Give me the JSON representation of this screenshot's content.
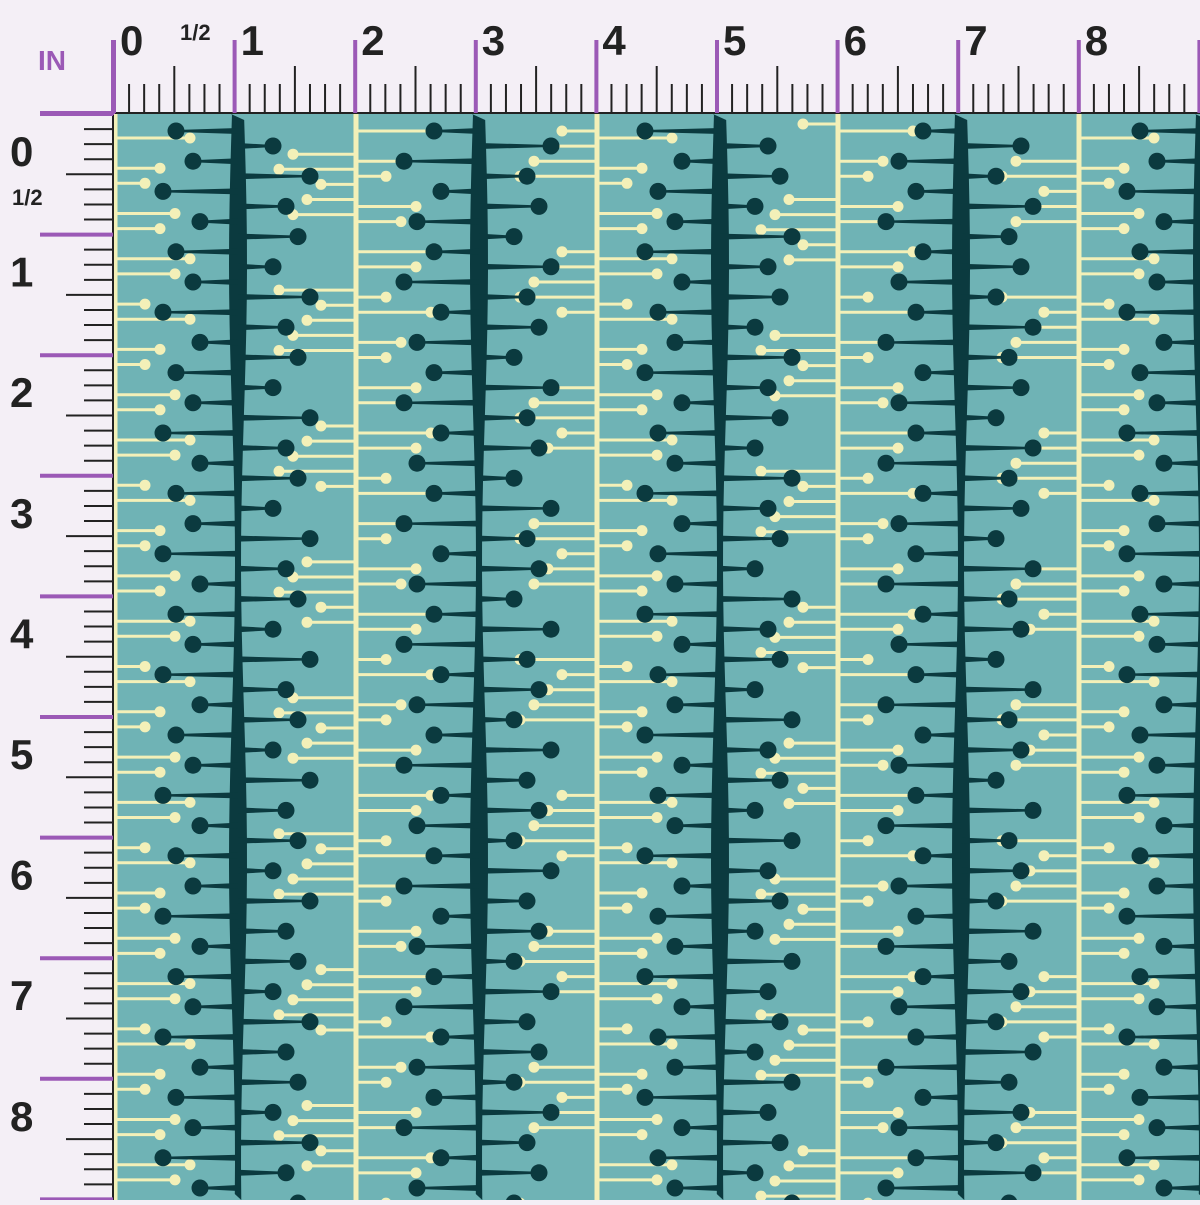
{
  "unit_label": "IN",
  "top_ruler": {
    "major_labels": [
      "0",
      "1",
      "2",
      "3",
      "4",
      "5",
      "6",
      "7",
      "8"
    ],
    "half_label": "1/2"
  },
  "left_ruler": {
    "major_labels": [
      "0",
      "1",
      "2",
      "3",
      "4",
      "5",
      "6",
      "7",
      "8"
    ],
    "half_label": "1/2"
  },
  "colors": {
    "page_background": "#f4eff6",
    "ruler_accent": "#9b59b6",
    "ruler_ink": "#222222",
    "swatch_background": "#6fb3b5",
    "stem_dark": "#0b3a3f",
    "stem_light": "#f3f0b8"
  },
  "pattern": {
    "motif": "vertical stems with branching lollipop dots",
    "dark_stem_columns_in": [
      1,
      3,
      5,
      7
    ],
    "light_stem_columns_in": [
      2,
      4,
      6,
      8
    ],
    "repeat_in": 2
  }
}
